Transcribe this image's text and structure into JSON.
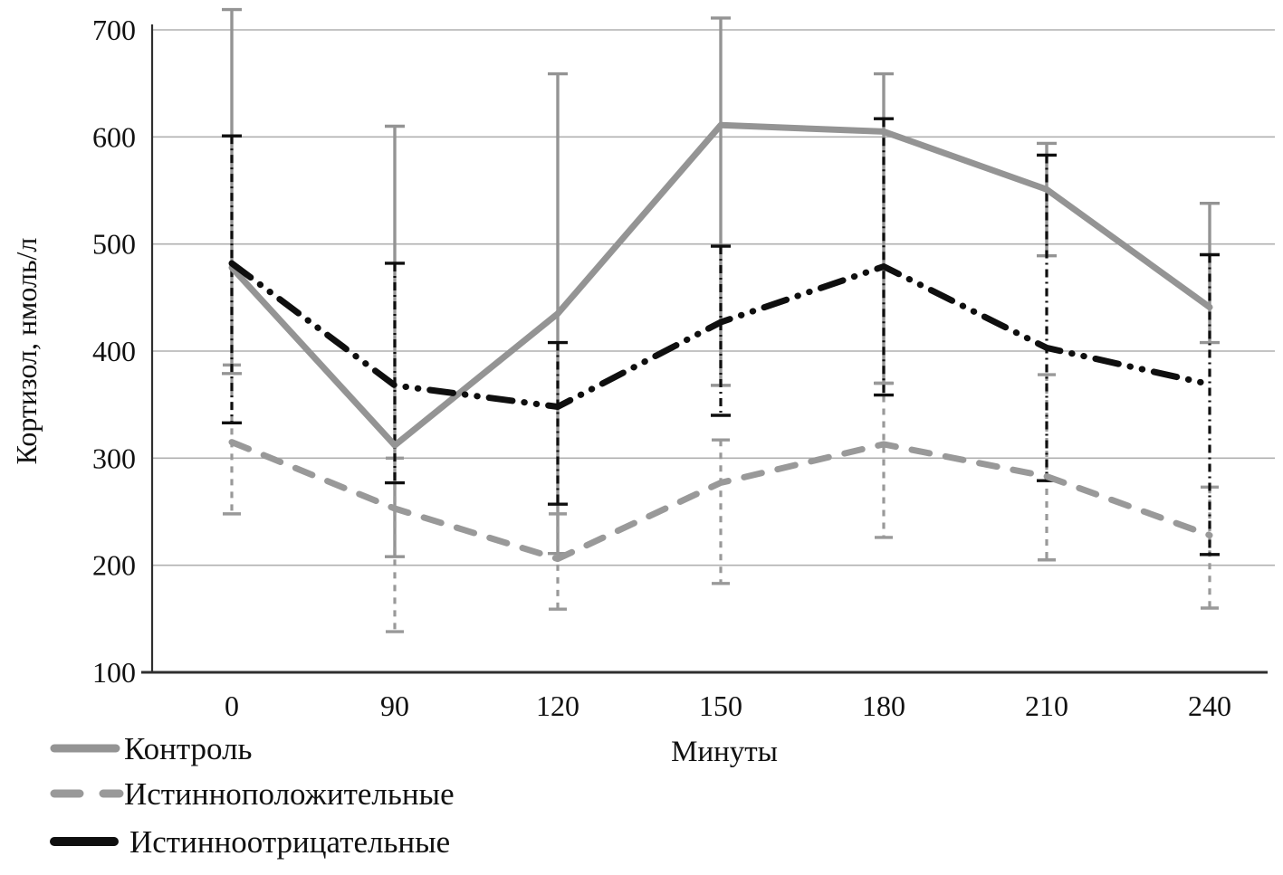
{
  "chart_data": {
    "type": "line",
    "title": "",
    "xlabel": "Минуты",
    "ylabel": "Кортизол, нмоль/л",
    "categories": [
      "0",
      "90",
      "120",
      "150",
      "180",
      "210",
      "240"
    ],
    "y_ticks": [
      100,
      200,
      300,
      400,
      500,
      600,
      700
    ],
    "ylim": [
      100,
      700
    ],
    "grid": "horizontal",
    "legend_position": "bottom-left",
    "series": [
      {
        "key": "control",
        "name": "Контроль",
        "style": "solid",
        "color": "#949494",
        "values": [
          478,
          312,
          435,
          611,
          605,
          551,
          441
        ],
        "err_low": [
          379,
          208,
          211,
          368,
          370,
          489,
          408
        ],
        "err_high": [
          719,
          610,
          659,
          711,
          659,
          594,
          538
        ]
      },
      {
        "key": "true-positive",
        "name": "Истинноположительные",
        "style": "dashed",
        "color": "#999999",
        "values": [
          315,
          253,
          206,
          277,
          313,
          283,
          228
        ],
        "err_low": [
          248,
          138,
          159,
          183,
          226,
          205,
          160
        ],
        "err_high": [
          387,
          300,
          248,
          317,
          370,
          378,
          273
        ]
      },
      {
        "key": "true-negative",
        "name": "Истинноотрицательные",
        "style": "dash-dot-dot",
        "color": "#0f0f0f",
        "values": [
          482,
          368,
          348,
          427,
          479,
          403,
          369
        ],
        "err_low": [
          333,
          277,
          257,
          340,
          359,
          279,
          210
        ],
        "err_high": [
          601,
          482,
          408,
          498,
          617,
          583,
          490
        ]
      }
    ],
    "colors": {
      "gridline": "#b0b0b0",
      "axis": "#2f2f2f",
      "text": "#111111"
    }
  }
}
